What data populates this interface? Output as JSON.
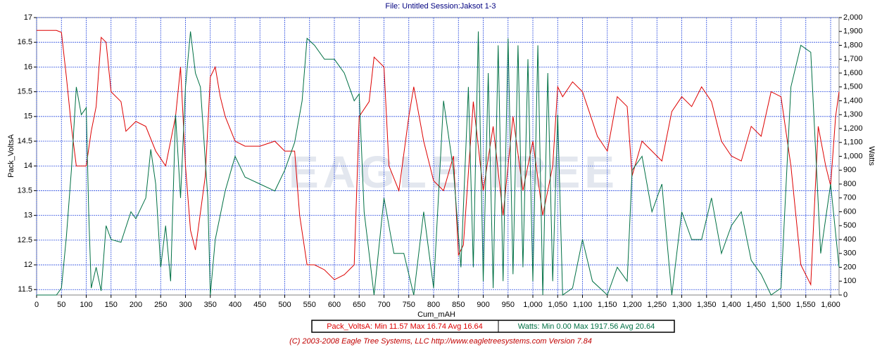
{
  "chart_data": {
    "type": "line",
    "title": "File: Untitled   Session:Jaksot 1-3",
    "xlabel": "Cum_mAH",
    "ylabel": "Pack_VoltsA",
    "y2label": "Watts",
    "watermark": "EAGLE TREE",
    "footer": "(C) 2003-2008 Eagle Tree Systems, LLC      http://www.eagletreesystems.com      Version 7.84",
    "grid": true,
    "xlim": [
      0,
      1617
    ],
    "ylim": [
      11.39,
      17
    ],
    "y2lim": [
      0,
      2000
    ],
    "xticks": [
      0,
      50,
      100,
      150,
      200,
      250,
      300,
      350,
      400,
      450,
      500,
      550,
      600,
      650,
      700,
      750,
      800,
      850,
      900,
      950,
      {
        "value": 1000,
        "label": "1,000"
      },
      {
        "value": 1050,
        "label": "1,050"
      },
      {
        "value": 1100,
        "label": "1,100"
      },
      {
        "value": 1150,
        "label": "1,150"
      },
      {
        "value": 1200,
        "label": "1,200"
      },
      {
        "value": 1250,
        "label": "1,250"
      },
      {
        "value": 1300,
        "label": "1,300"
      },
      {
        "value": 1350,
        "label": "1,350"
      },
      {
        "value": 1400,
        "label": "1,400"
      },
      {
        "value": 1450,
        "label": "1,450"
      },
      {
        "value": 1500,
        "label": "1,500"
      },
      {
        "value": 1550,
        "label": "1,550"
      },
      {
        "value": 1600,
        "label": "1,600"
      }
    ],
    "yticks": [
      11.5,
      12,
      12.5,
      13,
      13.5,
      14,
      14.5,
      15,
      15.5,
      16,
      16.5,
      17
    ],
    "y2ticks": [
      0,
      100,
      200,
      300,
      400,
      500,
      600,
      700,
      800,
      900,
      {
        "value": 1000,
        "label": "1,000"
      },
      {
        "value": 1100,
        "label": "1,100"
      },
      {
        "value": 1200,
        "label": "1,200"
      },
      {
        "value": 1300,
        "label": "1,300"
      },
      {
        "value": 1400,
        "label": "1,400"
      },
      {
        "value": 1500,
        "label": "1,500"
      },
      {
        "value": 1600,
        "label": "1,600"
      },
      {
        "value": 1700,
        "label": "1,700"
      },
      {
        "value": 1800,
        "label": "1,800"
      },
      {
        "value": 1900,
        "label": "1,900"
      },
      {
        "value": 2000,
        "label": "2,000"
      }
    ],
    "series": [
      {
        "legend": "Pack_VoltsA:  Min 11.57  Max 16.74  Avg 16.64",
        "color": "#dd0000",
        "axis": "y",
        "x": [
          0,
          40,
          50,
          60,
          70,
          80,
          100,
          110,
          120,
          130,
          140,
          150,
          170,
          180,
          200,
          220,
          240,
          260,
          280,
          290,
          300,
          310,
          320,
          340,
          350,
          360,
          370,
          380,
          400,
          420,
          450,
          480,
          500,
          520,
          530,
          545,
          560,
          580,
          600,
          620,
          640,
          650,
          670,
          680,
          700,
          710,
          730,
          750,
          760,
          780,
          800,
          820,
          840,
          850,
          860,
          880,
          900,
          920,
          940,
          960,
          980,
          1000,
          1020,
          1040,
          1050,
          1060,
          1080,
          1100,
          1110,
          1130,
          1150,
          1170,
          1190,
          1200,
          1220,
          1240,
          1260,
          1280,
          1300,
          1320,
          1340,
          1360,
          1380,
          1400,
          1420,
          1440,
          1460,
          1480,
          1500,
          1520,
          1540,
          1560,
          1575,
          1590,
          1600,
          1610,
          1617
        ],
        "values": [
          16.74,
          16.74,
          16.7,
          15.8,
          14.8,
          14.0,
          14.0,
          14.7,
          15.2,
          16.6,
          16.5,
          15.5,
          15.3,
          14.7,
          14.9,
          14.8,
          14.3,
          14.0,
          15.0,
          16.0,
          14.0,
          12.7,
          12.3,
          13.8,
          15.8,
          16.0,
          15.4,
          15.0,
          14.5,
          14.4,
          14.4,
          14.5,
          14.3,
          14.3,
          13.0,
          12.0,
          12.0,
          11.9,
          11.7,
          11.8,
          12.0,
          15.0,
          15.3,
          16.2,
          16.0,
          14.0,
          13.5,
          15.0,
          15.6,
          14.5,
          13.7,
          13.5,
          14.2,
          12.2,
          12.4,
          15.3,
          13.5,
          14.8,
          13.0,
          15.0,
          13.5,
          14.5,
          13.0,
          14.0,
          15.6,
          15.4,
          15.7,
          15.5,
          15.2,
          14.6,
          14.3,
          15.4,
          15.2,
          13.8,
          14.5,
          14.3,
          14.1,
          15.1,
          15.4,
          15.2,
          15.6,
          15.3,
          14.5,
          14.2,
          14.1,
          14.8,
          14.6,
          15.5,
          15.4,
          14.0,
          12.0,
          11.6,
          14.8,
          14.0,
          13.6,
          15.0,
          15.5
        ]
      },
      {
        "legend": "Watts:  Min 0.00  Max 1917.56  Avg 20.64",
        "color": "#007044",
        "axis": "y2",
        "x": [
          0,
          40,
          50,
          60,
          70,
          80,
          90,
          100,
          105,
          110,
          120,
          130,
          140,
          150,
          170,
          190,
          200,
          220,
          230,
          240,
          250,
          260,
          270,
          280,
          290,
          300,
          310,
          320,
          330,
          345,
          350,
          360,
          380,
          400,
          420,
          450,
          480,
          500,
          520,
          535,
          545,
          560,
          580,
          600,
          620,
          640,
          650,
          660,
          680,
          700,
          720,
          740,
          760,
          780,
          800,
          820,
          840,
          855,
          870,
          880,
          890,
          900,
          910,
          920,
          930,
          940,
          950,
          960,
          970,
          980,
          990,
          1000,
          1010,
          1020,
          1030,
          1040,
          1050,
          1060,
          1080,
          1100,
          1120,
          1150,
          1170,
          1190,
          1200,
          1220,
          1240,
          1260,
          1280,
          1300,
          1320,
          1340,
          1360,
          1380,
          1400,
          1420,
          1440,
          1460,
          1480,
          1500,
          1520,
          1540,
          1560,
          1580,
          1600,
          1617
        ],
        "values": [
          0,
          0,
          50,
          420,
          900,
          1500,
          1300,
          1350,
          600,
          50,
          200,
          30,
          500,
          400,
          380,
          600,
          550,
          700,
          1050,
          800,
          200,
          500,
          100,
          1300,
          700,
          1500,
          1900,
          1600,
          1500,
          700,
          0,
          400,
          750,
          1000,
          850,
          800,
          750,
          900,
          1100,
          1400,
          1850,
          1800,
          1700,
          1700,
          1600,
          1400,
          1450,
          600,
          0,
          700,
          300,
          300,
          0,
          600,
          50,
          1400,
          900,
          200,
          1500,
          200,
          1900,
          100,
          1600,
          50,
          1800,
          100,
          1850,
          150,
          1800,
          200,
          1700,
          100,
          1800,
          0,
          1600,
          100,
          1300,
          0,
          50,
          400,
          100,
          0,
          200,
          100,
          900,
          1000,
          600,
          800,
          0,
          600,
          400,
          400,
          700,
          300,
          500,
          600,
          250,
          150,
          0,
          50,
          1500,
          1800,
          1750,
          300,
          800,
          200
        ]
      }
    ]
  }
}
